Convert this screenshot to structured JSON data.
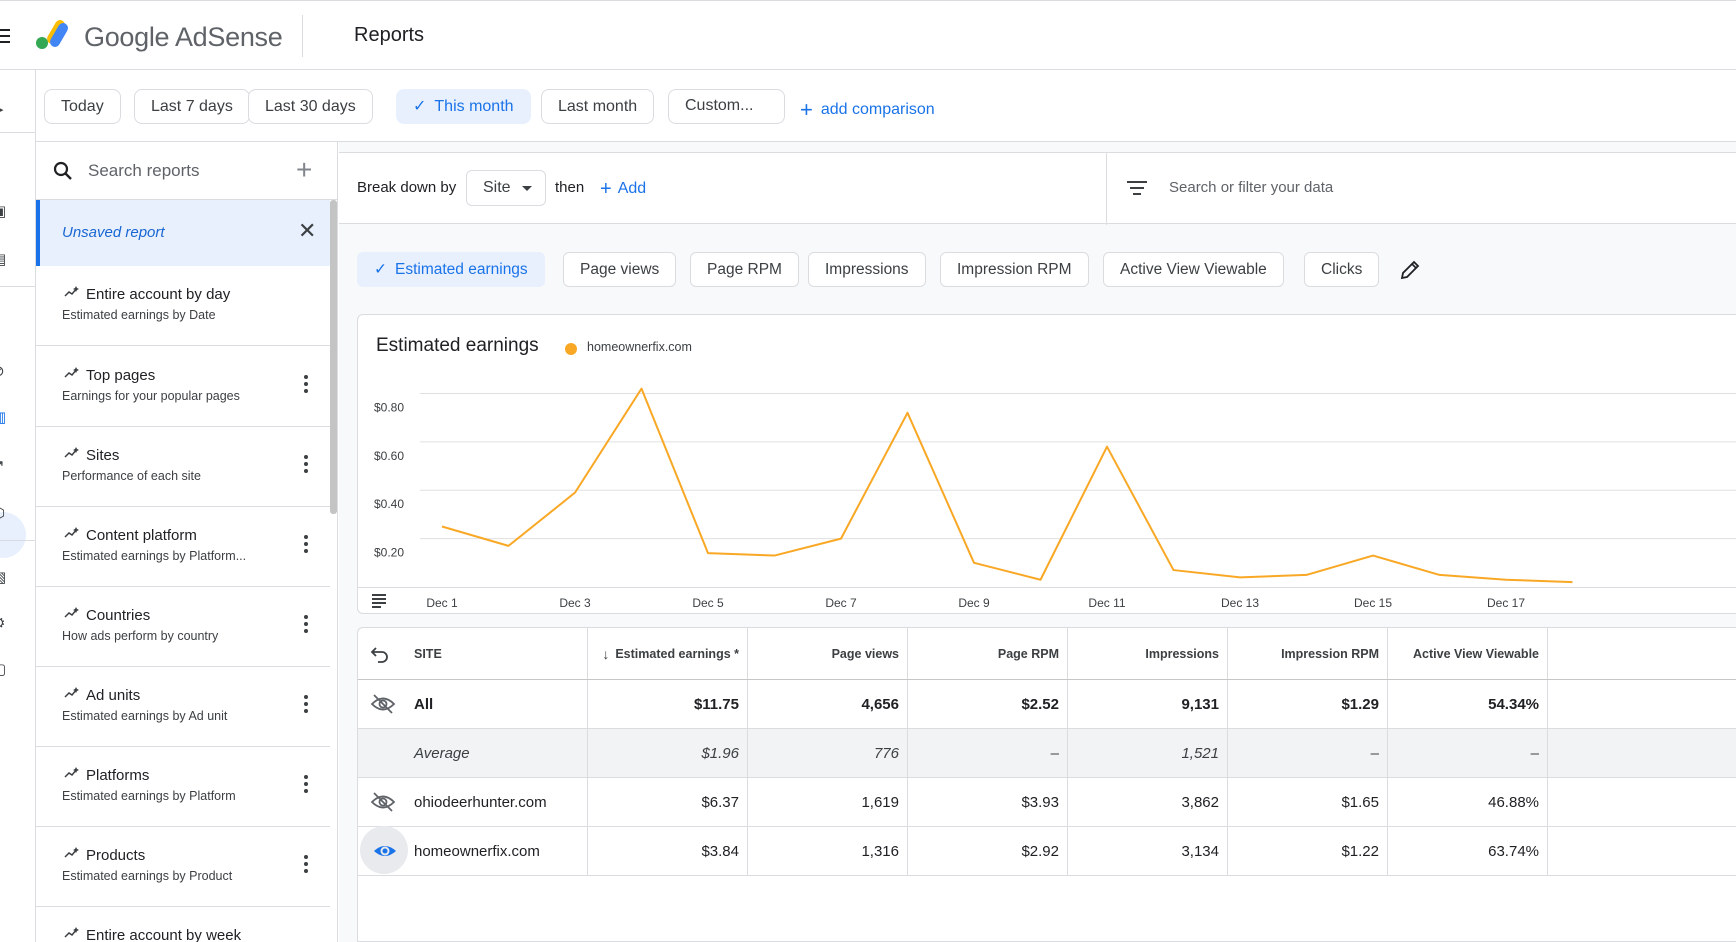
{
  "app": {
    "brand": "Google AdSense",
    "page_title": "Reports"
  },
  "date_range": {
    "chips": [
      "Today",
      "Last 7 days",
      "Last 30 days",
      "This month",
      "Last month",
      "Custom..."
    ],
    "active": "This month",
    "add_comparison": "add comparison"
  },
  "sidebar": {
    "search_placeholder": "Search reports",
    "unsaved_label": "Unsaved report",
    "reports": [
      {
        "name": "Entire account by day",
        "desc": "Estimated earnings by Date"
      },
      {
        "name": "Top pages",
        "desc": "Earnings for your popular pages"
      },
      {
        "name": "Sites",
        "desc": "Performance of each site"
      },
      {
        "name": "Content platform",
        "desc": "Estimated earnings by Platform..."
      },
      {
        "name": "Countries",
        "desc": "How ads perform by country"
      },
      {
        "name": "Ad units",
        "desc": "Estimated earnings by Ad unit"
      },
      {
        "name": "Platforms",
        "desc": "Estimated earnings by Platform"
      },
      {
        "name": "Products",
        "desc": "Estimated earnings by Product"
      },
      {
        "name": "Entire account by week",
        "desc": ""
      }
    ]
  },
  "breakdown": {
    "label": "Break down by",
    "dimension": "Site",
    "then": "then",
    "add": "Add",
    "filter_placeholder": "Search or filter your data"
  },
  "metrics": [
    "Estimated earnings",
    "Page views",
    "Page RPM",
    "Impressions",
    "Impression RPM",
    "Active View Viewable",
    "Clicks"
  ],
  "chart": {
    "title": "Estimated earnings",
    "legend": "homeownerfix.com",
    "color": "#f9a825"
  },
  "chart_data": {
    "type": "line",
    "title": "Estimated earnings",
    "series": [
      {
        "name": "homeownerfix.com",
        "x": [
          "Dec 1",
          "Dec 2",
          "Dec 3",
          "Dec 4",
          "Dec 5",
          "Dec 6",
          "Dec 7",
          "Dec 8",
          "Dec 9",
          "Dec 10",
          "Dec 11",
          "Dec 12",
          "Dec 13",
          "Dec 14",
          "Dec 15",
          "Dec 16",
          "Dec 17",
          "Dec 18"
        ],
        "values": [
          0.25,
          0.17,
          0.39,
          0.82,
          0.14,
          0.13,
          0.2,
          0.72,
          0.1,
          0.03,
          0.58,
          0.07,
          0.04,
          0.05,
          0.13,
          0.05,
          0.03,
          0.02
        ]
      }
    ],
    "x_tick_labels": [
      "Dec 1",
      "Dec 3",
      "Dec 5",
      "Dec 7",
      "Dec 9",
      "Dec 11",
      "Dec 13",
      "Dec 15",
      "Dec 17"
    ],
    "y_tick_labels": [
      "$0.80",
      "$0.60",
      "$0.40",
      "$0.20"
    ],
    "y_ticks": [
      0.8,
      0.6,
      0.4,
      0.2
    ],
    "ylim": [
      0,
      0.85
    ],
    "grid": true,
    "legend_position": "top-left"
  },
  "table": {
    "columns": [
      "SITE",
      "Estimated earnings *",
      "Page views",
      "Page RPM",
      "Impressions",
      "Impression RPM",
      "Active View Viewable"
    ],
    "rows": [
      {
        "site": "All",
        "values": [
          "$11.75",
          "4,656",
          "$2.52",
          "9,131",
          "$1.29",
          "54.34%"
        ]
      },
      {
        "site": "Average",
        "values": [
          "$1.96",
          "776",
          "–",
          "1,521",
          "–",
          "–"
        ]
      },
      {
        "site": "ohiodeerhunter.com",
        "values": [
          "$6.37",
          "1,619",
          "$3.93",
          "3,862",
          "$1.65",
          "46.88%"
        ]
      },
      {
        "site": "homeownerfix.com",
        "values": [
          "$3.84",
          "1,316",
          "$2.92",
          "3,134",
          "$1.22",
          "63.74%"
        ]
      }
    ]
  }
}
